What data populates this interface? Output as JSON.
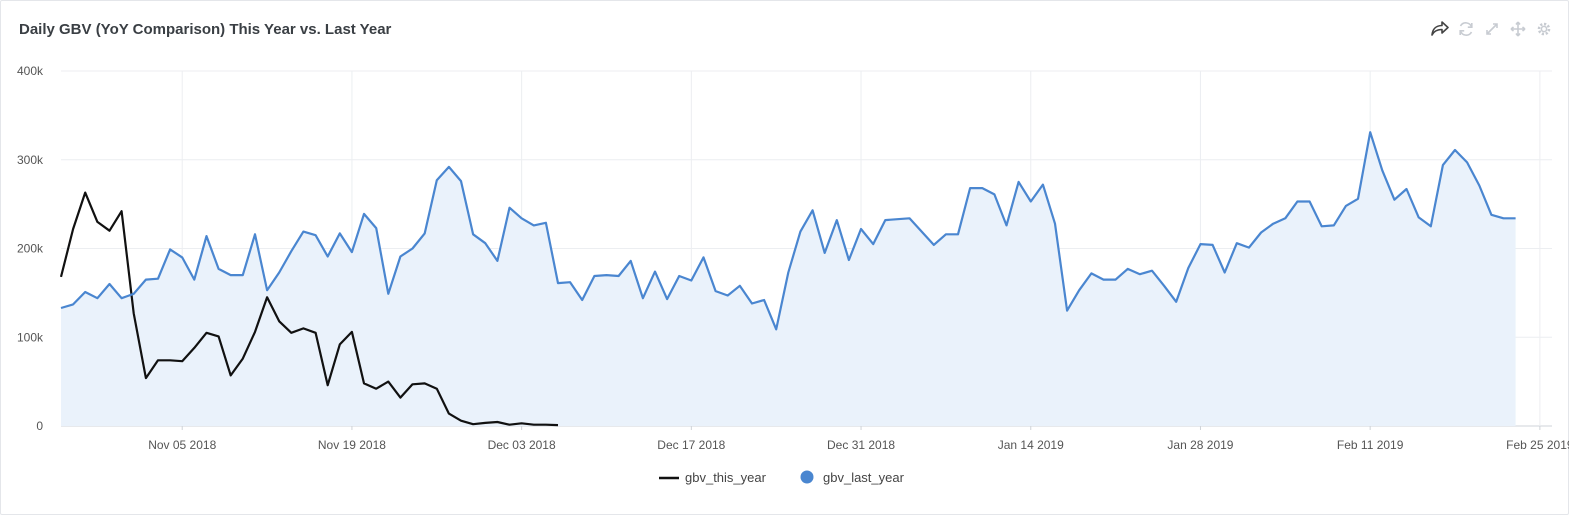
{
  "header": {
    "title": "Daily GBV (YoY Comparison) This Year vs. Last Year",
    "icons": [
      "share-icon",
      "refresh-icon",
      "expand-icon",
      "move-icon",
      "settings-icon"
    ]
  },
  "chart_data": {
    "type": "line",
    "title": "Daily GBV (YoY Comparison) This Year vs. Last Year",
    "xlabel": "",
    "ylabel": "",
    "x_start": "2018-10-26",
    "x_end": "2019-02-26",
    "ylim": [
      0,
      400000
    ],
    "y_ticks": [
      {
        "value": 0,
        "label": "0"
      },
      {
        "value": 100000,
        "label": "100k"
      },
      {
        "value": 200000,
        "label": "200k"
      },
      {
        "value": 300000,
        "label": "300k"
      },
      {
        "value": 400000,
        "label": "400k"
      }
    ],
    "x_ticks": [
      {
        "date": "2018-11-05",
        "label": "Nov 05 2018"
      },
      {
        "date": "2018-11-19",
        "label": "Nov 19 2018"
      },
      {
        "date": "2018-12-03",
        "label": "Dec 03 2018"
      },
      {
        "date": "2018-12-17",
        "label": "Dec 17 2018"
      },
      {
        "date": "2018-12-31",
        "label": "Dec 31 2018"
      },
      {
        "date": "2019-01-14",
        "label": "Jan 14 2019"
      },
      {
        "date": "2019-01-28",
        "label": "Jan 28 2019"
      },
      {
        "date": "2019-02-11",
        "label": "Feb 11 2019"
      },
      {
        "date": "2019-02-25",
        "label": "Feb 25 2019"
      }
    ],
    "grid": true,
    "legend": "bottom-center",
    "series": [
      {
        "name": "gbv_this_year",
        "color": "#111111",
        "style": "line",
        "start": "2018-10-26",
        "values": [
          168000,
          222000,
          263000,
          230000,
          220000,
          242000,
          127000,
          54000,
          74000,
          74000,
          73000,
          88000,
          105000,
          101000,
          57000,
          76000,
          106000,
          145000,
          118000,
          105000,
          110000,
          105000,
          46000,
          92000,
          106000,
          48000,
          42000,
          50000,
          32000,
          47000,
          48000,
          42000,
          14000,
          6000,
          2000,
          3500,
          4500,
          1500,
          3000,
          1500,
          1500,
          1000
        ]
      },
      {
        "name": "gbv_last_year",
        "color": "#4a86d0",
        "fill": "#eaf2fb",
        "style": "area",
        "start": "2018-10-26",
        "values": [
          133000,
          137000,
          151000,
          144000,
          160000,
          144000,
          149000,
          165000,
          166000,
          199000,
          190000,
          165000,
          214000,
          177000,
          170000,
          170000,
          216000,
          153000,
          173000,
          197000,
          219000,
          215000,
          191000,
          217000,
          196000,
          239000,
          223000,
          149000,
          191000,
          200000,
          217000,
          277000,
          292000,
          276000,
          216000,
          206000,
          186000,
          246000,
          234000,
          226000,
          229000,
          161000,
          162000,
          142000,
          169000,
          170000,
          169000,
          186000,
          144000,
          174000,
          143000,
          169000,
          164000,
          190000,
          152000,
          147000,
          158000,
          138000,
          142000,
          109000,
          173000,
          219000,
          243000,
          195000,
          232000,
          187000,
          222000,
          205000,
          232000,
          233000,
          234000,
          219000,
          204000,
          216000,
          216000,
          268000,
          268000,
          261000,
          226000,
          275000,
          253000,
          272000,
          228000,
          130000,
          153000,
          172000,
          165000,
          165000,
          177000,
          171000,
          175000,
          158000,
          140000,
          178000,
          205000,
          204000,
          173000,
          206000,
          201000,
          218000,
          228000,
          234000,
          253000,
          253000,
          225000,
          226000,
          248000,
          256000,
          331000,
          288000,
          255000,
          267000,
          235000,
          225000,
          294000,
          311000,
          297000,
          271000,
          238000,
          234000,
          234000
        ]
      }
    ]
  }
}
